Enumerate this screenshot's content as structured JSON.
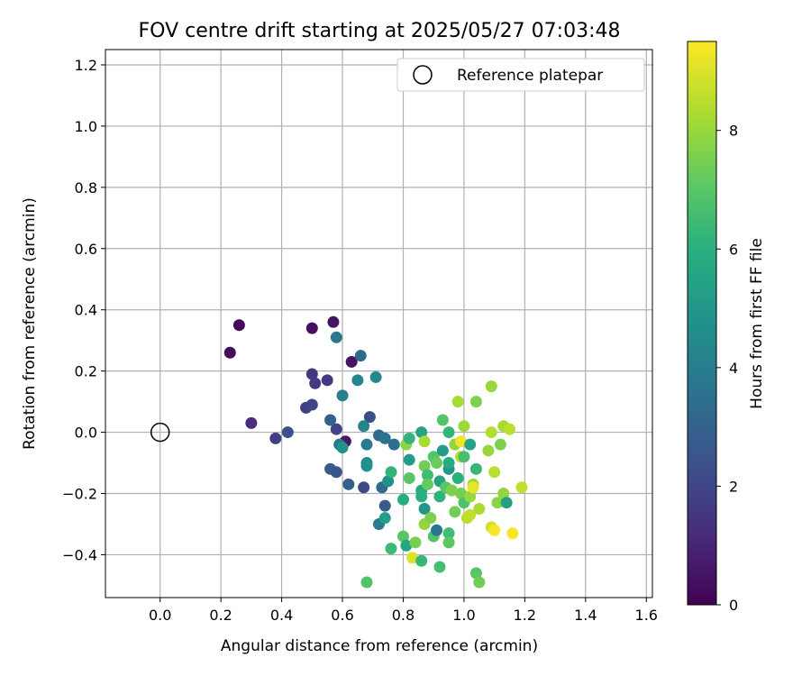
{
  "chart_data": {
    "type": "scatter",
    "title": "FOV centre drift starting at 2025/05/27 07:03:48",
    "xlabel": "Angular distance from reference (arcmin)",
    "ylabel": "Rotation from reference (arcmin)",
    "xlim": [
      -0.18,
      1.62
    ],
    "ylim": [
      -0.54,
      1.25
    ],
    "xticks": [
      "0.0",
      "0.2",
      "0.4",
      "0.6",
      "0.8",
      "1.0",
      "1.2",
      "1.4",
      "1.6"
    ],
    "yticks": [
      "−0.4",
      "−0.2",
      "0.0",
      "0.2",
      "0.4",
      "0.6",
      "0.8",
      "1.0",
      "1.2"
    ],
    "grid": true,
    "legend": {
      "position": "top-right",
      "entries": [
        "Reference platepar"
      ]
    },
    "reference_point": {
      "x": 0.0,
      "y": 0.0,
      "label": "Reference platepar"
    },
    "colorbar": {
      "label": "Hours from first FF file",
      "range": [
        0,
        9.5
      ],
      "ticks": [
        "0",
        "2",
        "4",
        "6",
        "8"
      ],
      "colormap": "viridis"
    },
    "points": [
      {
        "x": 0.23,
        "y": 0.26,
        "h": 0.3
      },
      {
        "x": 0.26,
        "y": 0.35,
        "h": 0.2
      },
      {
        "x": 0.5,
        "y": 0.34,
        "h": 0.4
      },
      {
        "x": 0.57,
        "y": 0.36,
        "h": 0.5
      },
      {
        "x": 0.63,
        "y": 0.23,
        "h": 0.5
      },
      {
        "x": 0.61,
        "y": -0.03,
        "h": 0.6
      },
      {
        "x": 0.3,
        "y": 0.03,
        "h": 1.2
      },
      {
        "x": 0.38,
        "y": -0.02,
        "h": 1.8
      },
      {
        "x": 0.5,
        "y": 0.19,
        "h": 1.5
      },
      {
        "x": 0.51,
        "y": 0.16,
        "h": 1.7
      },
      {
        "x": 0.55,
        "y": 0.17,
        "h": 1.6
      },
      {
        "x": 0.48,
        "y": 0.08,
        "h": 1.8
      },
      {
        "x": 0.5,
        "y": 0.09,
        "h": 2.0
      },
      {
        "x": 0.42,
        "y": 0.0,
        "h": 2.3
      },
      {
        "x": 0.58,
        "y": 0.01,
        "h": 1.9
      },
      {
        "x": 0.56,
        "y": 0.04,
        "h": 3.0
      },
      {
        "x": 0.58,
        "y": 0.31,
        "h": 3.8
      },
      {
        "x": 0.66,
        "y": 0.25,
        "h": 3.3
      },
      {
        "x": 0.6,
        "y": 0.12,
        "h": 4.1
      },
      {
        "x": 0.65,
        "y": 0.17,
        "h": 4.3
      },
      {
        "x": 0.71,
        "y": 0.18,
        "h": 4.5
      },
      {
        "x": 0.56,
        "y": -0.12,
        "h": 2.8
      },
      {
        "x": 0.58,
        "y": -0.13,
        "h": 2.6
      },
      {
        "x": 0.59,
        "y": -0.04,
        "h": 3.8
      },
      {
        "x": 0.6,
        "y": -0.05,
        "h": 4.8
      },
      {
        "x": 0.62,
        "y": -0.17,
        "h": 2.9
      },
      {
        "x": 0.67,
        "y": -0.18,
        "h": 2.1
      },
      {
        "x": 0.69,
        "y": 0.05,
        "h": 2.2
      },
      {
        "x": 0.67,
        "y": 0.02,
        "h": 4.3
      },
      {
        "x": 0.68,
        "y": -0.04,
        "h": 3.9
      },
      {
        "x": 0.68,
        "y": -0.1,
        "h": 4.6
      },
      {
        "x": 0.68,
        "y": -0.11,
        "h": 4.8
      },
      {
        "x": 0.72,
        "y": -0.01,
        "h": 3.2
      },
      {
        "x": 0.74,
        "y": -0.02,
        "h": 3.6
      },
      {
        "x": 0.72,
        "y": -0.3,
        "h": 3.9
      },
      {
        "x": 0.74,
        "y": -0.24,
        "h": 2.8
      },
      {
        "x": 0.73,
        "y": -0.18,
        "h": 3.3
      },
      {
        "x": 0.75,
        "y": -0.16,
        "h": 4.7
      },
      {
        "x": 0.74,
        "y": -0.28,
        "h": 5.3
      },
      {
        "x": 0.76,
        "y": -0.13,
        "h": 6.2
      },
      {
        "x": 0.77,
        "y": -0.04,
        "h": 3.5
      },
      {
        "x": 0.76,
        "y": -0.38,
        "h": 6.4
      },
      {
        "x": 0.68,
        "y": -0.49,
        "h": 6.8
      },
      {
        "x": 0.8,
        "y": -0.22,
        "h": 5.9
      },
      {
        "x": 0.8,
        "y": -0.34,
        "h": 7.0
      },
      {
        "x": 0.81,
        "y": -0.37,
        "h": 5.6
      },
      {
        "x": 0.81,
        "y": -0.04,
        "h": 7.8
      },
      {
        "x": 0.82,
        "y": -0.02,
        "h": 6.2
      },
      {
        "x": 0.82,
        "y": -0.15,
        "h": 7.0
      },
      {
        "x": 0.82,
        "y": -0.09,
        "h": 5.2
      },
      {
        "x": 0.83,
        "y": -0.41,
        "h": 9.0
      },
      {
        "x": 0.84,
        "y": -0.36,
        "h": 7.5
      },
      {
        "x": 0.86,
        "y": -0.42,
        "h": 6.3
      },
      {
        "x": 0.86,
        "y": -0.19,
        "h": 5.8
      },
      {
        "x": 0.86,
        "y": -0.21,
        "h": 6.0
      },
      {
        "x": 0.86,
        "y": 0.0,
        "h": 5.5
      },
      {
        "x": 0.87,
        "y": -0.03,
        "h": 8.2
      },
      {
        "x": 0.87,
        "y": -0.11,
        "h": 7.4
      },
      {
        "x": 0.87,
        "y": -0.25,
        "h": 5.0
      },
      {
        "x": 0.87,
        "y": -0.3,
        "h": 7.9
      },
      {
        "x": 0.88,
        "y": -0.14,
        "h": 6.5
      },
      {
        "x": 0.88,
        "y": -0.17,
        "h": 7.2
      },
      {
        "x": 0.89,
        "y": -0.28,
        "h": 7.6
      },
      {
        "x": 0.9,
        "y": -0.34,
        "h": 6.8
      },
      {
        "x": 0.9,
        "y": -0.08,
        "h": 6.9
      },
      {
        "x": 0.91,
        "y": -0.32,
        "h": 3.8
      },
      {
        "x": 0.91,
        "y": -0.1,
        "h": 7.3
      },
      {
        "x": 0.92,
        "y": -0.44,
        "h": 6.6
      },
      {
        "x": 0.92,
        "y": -0.21,
        "h": 6.1
      },
      {
        "x": 0.92,
        "y": -0.16,
        "h": 5.5
      },
      {
        "x": 0.93,
        "y": -0.06,
        "h": 5.2
      },
      {
        "x": 0.93,
        "y": 0.04,
        "h": 6.9
      },
      {
        "x": 0.94,
        "y": -0.18,
        "h": 7.0
      },
      {
        "x": 0.95,
        "y": -0.12,
        "h": 5.0
      },
      {
        "x": 0.95,
        "y": -0.1,
        "h": 5.8
      },
      {
        "x": 0.95,
        "y": 0.0,
        "h": 6.2
      },
      {
        "x": 0.95,
        "y": -0.33,
        "h": 6.5
      },
      {
        "x": 0.95,
        "y": -0.36,
        "h": 7.1
      },
      {
        "x": 0.96,
        "y": -0.19,
        "h": 7.6
      },
      {
        "x": 0.97,
        "y": -0.04,
        "h": 7.9
      },
      {
        "x": 0.97,
        "y": -0.26,
        "h": 7.4
      },
      {
        "x": 0.98,
        "y": 0.1,
        "h": 8.2
      },
      {
        "x": 0.98,
        "y": -0.15,
        "h": 6.0
      },
      {
        "x": 0.99,
        "y": -0.08,
        "h": 8.4
      },
      {
        "x": 0.99,
        "y": -0.03,
        "h": 9.3
      },
      {
        "x": 0.99,
        "y": -0.2,
        "h": 7.5
      },
      {
        "x": 1.0,
        "y": 0.02,
        "h": 8.1
      },
      {
        "x": 1.0,
        "y": -0.08,
        "h": 6.6
      },
      {
        "x": 1.0,
        "y": -0.23,
        "h": 6.8
      },
      {
        "x": 1.01,
        "y": -0.28,
        "h": 8.5
      },
      {
        "x": 1.02,
        "y": -0.27,
        "h": 8.6
      },
      {
        "x": 1.02,
        "y": -0.04,
        "h": 5.5
      },
      {
        "x": 1.02,
        "y": -0.21,
        "h": 8.0
      },
      {
        "x": 1.03,
        "y": -0.17,
        "h": 8.1
      },
      {
        "x": 1.03,
        "y": -0.18,
        "h": 9.2
      },
      {
        "x": 1.04,
        "y": -0.12,
        "h": 6.3
      },
      {
        "x": 1.04,
        "y": -0.46,
        "h": 7.0
      },
      {
        "x": 1.04,
        "y": 0.1,
        "h": 7.6
      },
      {
        "x": 1.05,
        "y": -0.25,
        "h": 8.3
      },
      {
        "x": 1.05,
        "y": -0.49,
        "h": 7.4
      },
      {
        "x": 1.08,
        "y": -0.06,
        "h": 8.0
      },
      {
        "x": 1.09,
        "y": 0.0,
        "h": 8.4
      },
      {
        "x": 1.09,
        "y": 0.15,
        "h": 8.0
      },
      {
        "x": 1.09,
        "y": -0.31,
        "h": 8.8
      },
      {
        "x": 1.1,
        "y": -0.32,
        "h": 9.4
      },
      {
        "x": 1.1,
        "y": -0.13,
        "h": 8.5
      },
      {
        "x": 1.11,
        "y": -0.23,
        "h": 7.8
      },
      {
        "x": 1.12,
        "y": -0.04,
        "h": 7.6
      },
      {
        "x": 1.13,
        "y": 0.02,
        "h": 8.2
      },
      {
        "x": 1.13,
        "y": -0.2,
        "h": 7.9
      },
      {
        "x": 1.14,
        "y": -0.23,
        "h": 5.3
      },
      {
        "x": 1.15,
        "y": 0.01,
        "h": 8.5
      },
      {
        "x": 1.16,
        "y": -0.33,
        "h": 9.4
      },
      {
        "x": 1.19,
        "y": -0.18,
        "h": 8.6
      }
    ]
  }
}
